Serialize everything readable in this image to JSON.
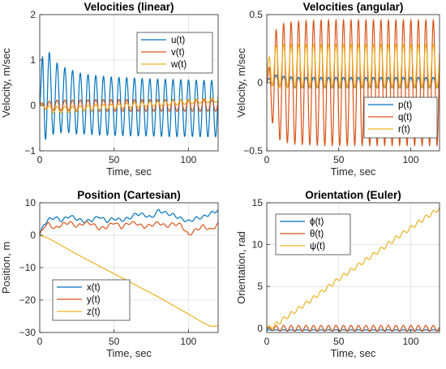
{
  "chart_data": [
    {
      "type": "line",
      "title": "Velocities (linear)",
      "xlabel": "Time, sec",
      "ylabel": "Velocity, m/sec",
      "xlim": [
        0,
        120
      ],
      "ylim": [
        -1,
        2
      ],
      "xticks": [
        0,
        50,
        100
      ],
      "yticks": [
        -1,
        0,
        1,
        2
      ],
      "grid": true,
      "legend_position": "top-right",
      "series": [
        {
          "name": "u(t)",
          "color": "#0072BD",
          "x": [
            0,
            1,
            2,
            3,
            4,
            6,
            8,
            10,
            13,
            16,
            20,
            25,
            30,
            40,
            50,
            60,
            70,
            80,
            90,
            100,
            110,
            120
          ],
          "amplitude": [
            0,
            0.35,
            0.9,
            1.1,
            1.05,
            0.95,
            0.85,
            0.8,
            0.75,
            0.72,
            0.7,
            0.68,
            0.66,
            0.65,
            0.64,
            0.64,
            0.63,
            0.63,
            0.63,
            0.62,
            0.62,
            0.62
          ],
          "offset": [
            0,
            0.25,
            0.45,
            0.4,
            0.3,
            0.25,
            0.2,
            0.18,
            0.15,
            0.12,
            0.1,
            0.05,
            0.03,
            0,
            -0.02,
            -0.03,
            -0.04,
            -0.05,
            -0.06,
            -0.06,
            -0.07,
            -0.07
          ],
          "period": 5.2,
          "y": [
            0,
            0.6,
            1.35,
            1.5,
            -0.5,
            1.2,
            -0.7,
            0.98,
            -0.6,
            0.84,
            -0.6,
            0.73,
            -0.63,
            0.65,
            -0.66,
            0.61,
            -0.67,
            0.58,
            -0.69,
            0.56,
            -0.69,
            -0.25
          ]
        },
        {
          "name": "v(t)",
          "color": "#D95319",
          "x": [
            0,
            10,
            20,
            40,
            60,
            80,
            100,
            120
          ],
          "amplitude": [
            0.05,
            0.12,
            0.12,
            0.13,
            0.13,
            0.13,
            0.13,
            0.13
          ],
          "offset": [
            0,
            0,
            0,
            0,
            0,
            0,
            0,
            0
          ],
          "period": 5.2,
          "y": [
            0,
            0.12,
            -0.12,
            0.13,
            -0.13,
            0.13,
            -0.13,
            0.05
          ]
        },
        {
          "name": "w(t)",
          "color": "#EDB120",
          "x": [
            0,
            10,
            20,
            30,
            40,
            50,
            60,
            70,
            80,
            90,
            100,
            110,
            120
          ],
          "amplitude": [
            0.03,
            0.08,
            0.07,
            0.06,
            0.06,
            0.05,
            0.05,
            0.05,
            0.05,
            0.05,
            0.05,
            0.05,
            0.05
          ],
          "offset": [
            0,
            -0.1,
            -0.09,
            -0.06,
            -0.04,
            -0.02,
            0,
            0.02,
            0.04,
            0.06,
            0.08,
            0.1,
            0.12
          ],
          "period": 5.2,
          "y": [
            0,
            -0.15,
            -0.05,
            -0.1,
            0.02,
            -0.02,
            0.05,
            0.02,
            0.09,
            0.01,
            0.13,
            0.05,
            0.15
          ]
        }
      ]
    },
    {
      "type": "line",
      "title": "Velocities (angular)",
      "xlabel": "Time, sec",
      "ylabel": "Velocity, m/sec",
      "xlim": [
        0,
        120
      ],
      "ylim": [
        -0.5,
        0.5
      ],
      "xticks": [
        0,
        50,
        100
      ],
      "yticks": [
        -0.5,
        0,
        0.5
      ],
      "grid": true,
      "legend_position": "bottom-right",
      "series": [
        {
          "name": "p(t)",
          "color": "#0072BD",
          "x": [
            0,
            5,
            10,
            20,
            40,
            60,
            80,
            100,
            120
          ],
          "amplitude": [
            0.02,
            0.04,
            0.04,
            0.04,
            0.04,
            0.04,
            0.04,
            0.04,
            0.04
          ],
          "offset": [
            0,
            0.02,
            0.01,
            0,
            0,
            0,
            0,
            0,
            0
          ],
          "period": 5.2,
          "y": [
            0,
            0.06,
            -0.03,
            0.04,
            -0.04,
            0.04,
            -0.04,
            0.04,
            0.1
          ]
        },
        {
          "name": "q(t)",
          "color": "#D95319",
          "x": [
            0,
            2,
            4,
            6,
            10,
            20,
            40,
            60,
            80,
            100,
            120
          ],
          "amplitude": [
            0,
            0.15,
            0.3,
            0.38,
            0.43,
            0.45,
            0.46,
            0.46,
            0.46,
            0.46,
            0.46
          ],
          "offset": [
            0,
            0,
            0,
            0,
            0,
            0,
            0,
            0,
            0,
            0,
            0
          ],
          "period": 5.2,
          "y": [
            0,
            -0.15,
            0.3,
            -0.38,
            0.43,
            -0.45,
            0.46,
            -0.46,
            0.46,
            -0.46,
            0.3
          ]
        },
        {
          "name": "r(t)",
          "color": "#EDB120",
          "x": [
            0,
            2,
            5,
            10,
            20,
            40,
            60,
            80,
            100,
            120
          ],
          "amplitude": [
            0.05,
            0.12,
            0.15,
            0.16,
            0.16,
            0.16,
            0.16,
            0.16,
            0.16,
            0.16
          ],
          "offset": [
            0.05,
            0.1,
            0.12,
            0.12,
            0.12,
            0.12,
            0.12,
            0.12,
            0.12,
            0.12
          ],
          "period": 5.2,
          "y": [
            0.1,
            0.2,
            -0.03,
            0.28,
            -0.04,
            0.28,
            -0.04,
            0.28,
            -0.04,
            0.28
          ]
        }
      ]
    },
    {
      "type": "line",
      "title": "Position (Cartesian)",
      "xlabel": "Time, sec",
      "ylabel": "Position, m",
      "xlim": [
        0,
        120
      ],
      "ylim": [
        -30,
        10
      ],
      "xticks": [
        0,
        50,
        100
      ],
      "yticks": [
        -30,
        -20,
        -10,
        0,
        10
      ],
      "grid": true,
      "legend_position": "bottom-left",
      "series": [
        {
          "name": "x(t)",
          "color": "#0072BD",
          "x": [
            0,
            3,
            6,
            10,
            15,
            20,
            25,
            30,
            35,
            40,
            45,
            50,
            55,
            60,
            65,
            70,
            75,
            80,
            85,
            90,
            95,
            100,
            105,
            110,
            115,
            120
          ],
          "y": [
            0,
            3.5,
            4.8,
            5.5,
            4.5,
            6,
            5,
            4.2,
            4.6,
            5.8,
            4.3,
            5.2,
            4.6,
            5.2,
            6.6,
            6.3,
            5.4,
            7.6,
            6.8,
            6.2,
            5.1,
            4.2,
            5.2,
            5.6,
            6.7,
            7.7
          ]
        },
        {
          "name": "y(t)",
          "color": "#D95319",
          "x": [
            0,
            3,
            6,
            10,
            15,
            20,
            25,
            30,
            35,
            40,
            45,
            50,
            55,
            60,
            65,
            70,
            75,
            80,
            85,
            90,
            95,
            100,
            105,
            110,
            115,
            120
          ],
          "y": [
            0,
            2.8,
            3.5,
            2,
            3.3,
            4,
            2.7,
            3.8,
            3.6,
            2,
            2.5,
            4,
            2.4,
            3.8,
            3.7,
            2.5,
            3.1,
            3.9,
            2.7,
            3.5,
            3.2,
            0,
            1.6,
            2.8,
            1.6,
            3.4
          ]
        },
        {
          "name": "z(t)",
          "color": "#EDB120",
          "x": [
            0,
            5,
            10,
            20,
            30,
            40,
            50,
            60,
            70,
            80,
            90,
            100,
            110,
            115,
            120
          ],
          "y": [
            0,
            -0.8,
            -2,
            -4.6,
            -7.1,
            -9.5,
            -11.9,
            -14.3,
            -16.7,
            -19.1,
            -21.7,
            -24.3,
            -27,
            -28.1,
            -28
          ]
        }
      ]
    },
    {
      "type": "line",
      "title": "Orientation (Euler)",
      "xlabel": "Time, sec",
      "ylabel": "Orientation, rad",
      "xlim": [
        0,
        120
      ],
      "ylim": [
        -0.5,
        15
      ],
      "xticks": [
        0,
        50,
        100
      ],
      "yticks": [
        0,
        5,
        10,
        15
      ],
      "grid": true,
      "legend_position": "top-left",
      "series": [
        {
          "name": "ϕ(t)",
          "color": "#0072BD",
          "x": [
            0,
            10,
            20,
            40,
            60,
            80,
            100,
            120
          ],
          "y": [
            0,
            -0.25,
            -0.2,
            -0.25,
            -0.2,
            -0.25,
            -0.2,
            -0.2
          ]
        },
        {
          "name": "θ(t)",
          "color": "#D95319",
          "x": [
            0,
            5,
            10,
            20,
            40,
            60,
            80,
            100,
            120
          ],
          "amplitude": [
            0,
            0.3,
            0.35,
            0.35,
            0.35,
            0.35,
            0.35,
            0.35,
            0.35
          ],
          "offset": [
            0,
            0,
            0,
            0,
            0,
            0,
            0,
            0,
            0
          ],
          "period": 5.2,
          "y": [
            0,
            0.3,
            -0.35,
            0.35,
            -0.35,
            0.35,
            -0.35,
            0.35,
            0.2
          ]
        },
        {
          "name": "ψ(t)",
          "color": "#EDB120",
          "x": [
            0,
            5,
            10,
            20,
            30,
            40,
            50,
            60,
            70,
            80,
            90,
            100,
            110,
            120
          ],
          "y": [
            0,
            0.3,
            0.9,
            2.1,
            3.3,
            4.6,
            5.9,
            7.1,
            8.3,
            9.5,
            10.8,
            12,
            13.2,
            14.3
          ]
        }
      ]
    }
  ]
}
